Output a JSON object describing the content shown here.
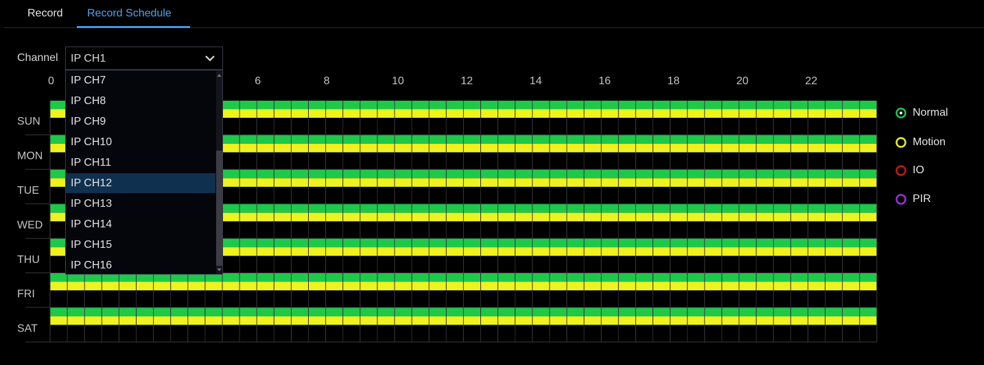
{
  "tabs": {
    "items": [
      "Record",
      "Record Schedule"
    ],
    "active": 1
  },
  "channel": {
    "label": "Channel",
    "value": "IP CH1",
    "options": [
      "IP CH7",
      "IP CH8",
      "IP CH9",
      "IP CH10",
      "IP CH11",
      "IP CH12",
      "IP CH13",
      "IP CH14",
      "IP CH15",
      "IP CH16"
    ],
    "highlighted": 5
  },
  "schedule": {
    "hours": [
      0,
      6,
      8,
      10,
      12,
      14,
      16,
      18,
      20,
      22
    ],
    "days": [
      "SUN",
      "MON",
      "TUE",
      "WED",
      "THU",
      "FRI",
      "SAT"
    ]
  },
  "legend": [
    {
      "label": "Normal",
      "color": "#1ec94a"
    },
    {
      "label": "Motion",
      "color": "#eef21e"
    },
    {
      "label": "IO",
      "color": "#d01414"
    },
    {
      "label": "PIR",
      "color": "#9b30e0"
    }
  ]
}
